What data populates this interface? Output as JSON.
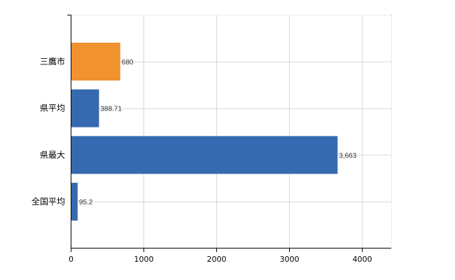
{
  "chart_data": {
    "type": "bar",
    "orientation": "horizontal",
    "categories": [
      "三鷹市",
      "県平均",
      "県最大",
      "全国平均"
    ],
    "values": [
      680,
      388.71,
      3663,
      95.2
    ],
    "value_labels": [
      "680",
      "388.71",
      "3,663",
      "95.2"
    ],
    "bar_colors": [
      "#f0922f",
      "#356ab0",
      "#356ab0",
      "#356ab0"
    ],
    "xlim": [
      0,
      4400
    ],
    "x_ticks": [
      0,
      1000,
      2000,
      3000,
      4000
    ],
    "x_tick_labels": [
      "0",
      "1000",
      "2000",
      "3000",
      "4000"
    ],
    "grid": true,
    "title": "",
    "xlabel": "",
    "ylabel": ""
  },
  "colors": {
    "highlight": "#f0922f",
    "default": "#356ab0",
    "grid": "#d8d8d8",
    "axis": "#000000"
  }
}
